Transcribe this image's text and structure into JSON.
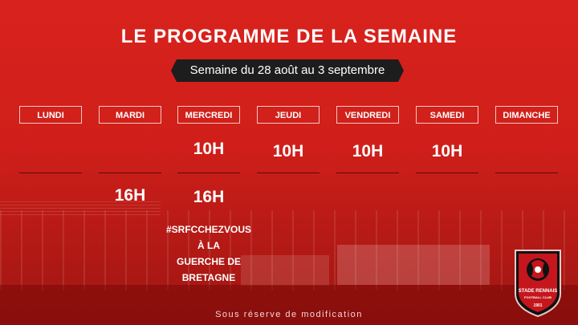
{
  "title": "LE PROGRAMME DE LA SEMAINE",
  "week_label": "Semaine du 28 août au 3 septembre",
  "days": [
    "LUNDI",
    "MARDI",
    "MERCREDI",
    "JEUDI",
    "VENDREDI",
    "SAMEDI",
    "DIMANCHE"
  ],
  "morning_sessions": {
    "mercredi": "10H",
    "jeudi": "10H",
    "vendredi": "10H",
    "samedi": "10H"
  },
  "afternoon_sessions": {
    "mardi": "16H",
    "mercredi": "16H"
  },
  "note": {
    "hashtag": "#SRFCCHEZVOUS",
    "line2": "À LA",
    "line3": "GUERCHE DE BRETAGNE"
  },
  "footer": "Sous réserve de modification",
  "crest": {
    "name": "STADE RENNAIS",
    "subtitle": "FOOTBALL CLUB",
    "year": "1901"
  },
  "colors": {
    "background": "#d8221d",
    "badge": "#1d1d1d",
    "text": "#ffffff"
  }
}
